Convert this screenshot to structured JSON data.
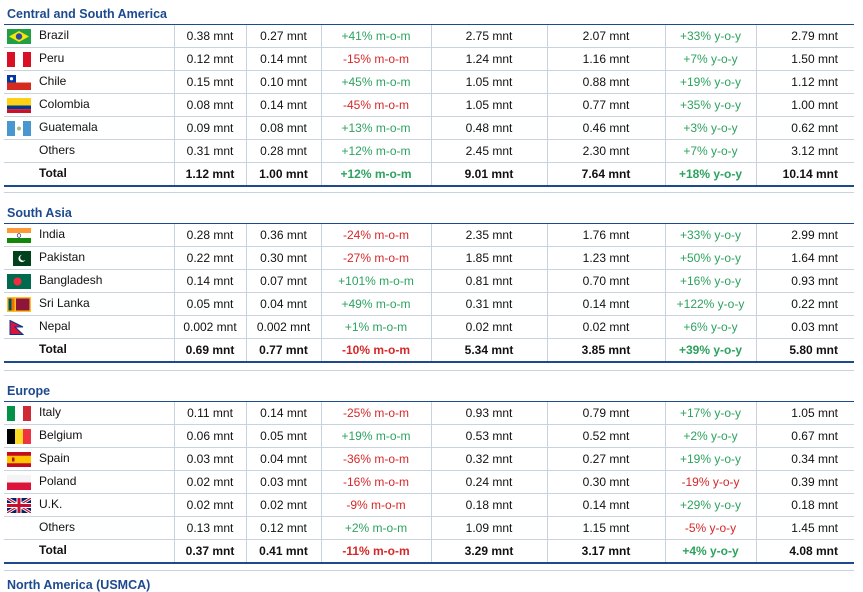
{
  "sections": [
    {
      "title": "Central and South America",
      "rows": [
        {
          "country": "Brazil",
          "flag": "brazil-flag",
          "c1": "0.38 mnt",
          "c2": "0.27 mnt",
          "mom": "+41% m-o-m",
          "c4": "2.75 mnt",
          "c5": "2.07 mnt",
          "yoy": "+33% y-o-y",
          "c7": "2.79 mnt"
        },
        {
          "country": "Peru",
          "flag": "peru-flag",
          "c1": "0.12 mnt",
          "c2": "0.14 mnt",
          "mom": "-15% m-o-m",
          "c4": "1.24 mnt",
          "c5": "1.16 mnt",
          "yoy": "+7% y-o-y",
          "c7": "1.50 mnt"
        },
        {
          "country": "Chile",
          "flag": "chile-flag",
          "c1": "0.15 mnt",
          "c2": "0.10 mnt",
          "mom": "+45% m-o-m",
          "c4": "1.05 mnt",
          "c5": "0.88 mnt",
          "yoy": "+19% y-o-y",
          "c7": "1.12 mnt"
        },
        {
          "country": "Colombia",
          "flag": "colombia-flag",
          "c1": "0.08 mnt",
          "c2": "0.14 mnt",
          "mom": "-45% m-o-m",
          "c4": "1.05 mnt",
          "c5": "0.77 mnt",
          "yoy": "+35% y-o-y",
          "c7": "1.00 mnt"
        },
        {
          "country": "Guatemala",
          "flag": "guatemala-flag",
          "c1": "0.09 mnt",
          "c2": "0.08 mnt",
          "mom": "+13% m-o-m",
          "c4": "0.48 mnt",
          "c5": "0.46 mnt",
          "yoy": "+3% y-o-y",
          "c7": "0.62 mnt"
        },
        {
          "country": "Others",
          "flag": "",
          "c1": "0.31 mnt",
          "c2": "0.28 mnt",
          "mom": "+12% m-o-m",
          "c4": "2.45 mnt",
          "c5": "2.30 mnt",
          "yoy": "+7% y-o-y",
          "c7": "3.12 mnt"
        }
      ],
      "total": {
        "label": "Total",
        "c1": "1.12 mnt",
        "c2": "1.00 mnt",
        "mom": "+12% m-o-m",
        "c4": "9.01 mnt",
        "c5": "7.64 mnt",
        "yoy": "+18% y-o-y",
        "c7": "10.14 mnt"
      }
    },
    {
      "title": "South Asia",
      "rows": [
        {
          "country": "India",
          "flag": "india-flag",
          "c1": "0.28 mnt",
          "c2": "0.36 mnt",
          "mom": "-24% m-o-m",
          "c4": "2.35 mnt",
          "c5": "1.76 mnt",
          "yoy": "+33% y-o-y",
          "c7": "2.99 mnt"
        },
        {
          "country": "Pakistan",
          "flag": "pakistan-flag",
          "c1": "0.22 mnt",
          "c2": "0.30 mnt",
          "mom": "-27% m-o-m",
          "c4": "1.85 mnt",
          "c5": "1.23 mnt",
          "yoy": "+50% y-o-y",
          "c7": "1.64 mnt"
        },
        {
          "country": "Bangladesh",
          "flag": "bangladesh-flag",
          "c1": "0.14 mnt",
          "c2": "0.07 mnt",
          "mom": "+101% m-o-m",
          "c4": "0.81 mnt",
          "c5": "0.70 mnt",
          "yoy": "+16% y-o-y",
          "c7": "0.93 mnt"
        },
        {
          "country": "Sri Lanka",
          "flag": "sri-lanka-flag",
          "c1": "0.05 mnt",
          "c2": "0.04 mnt",
          "mom": "+49% m-o-m",
          "c4": "0.31 mnt",
          "c5": "0.14 mnt",
          "yoy": "+122% y-o-y",
          "c7": "0.22 mnt"
        },
        {
          "country": "Nepal",
          "flag": "nepal-flag",
          "c1": "0.002 mnt",
          "c2": "0.002 mnt",
          "mom": "+1% m-o-m",
          "c4": "0.02 mnt",
          "c5": "0.02 mnt",
          "yoy": "+6% y-o-y",
          "c7": "0.03 mnt"
        }
      ],
      "total": {
        "label": "Total",
        "c1": "0.69 mnt",
        "c2": "0.77 mnt",
        "mom": "-10% m-o-m",
        "c4": "5.34 mnt",
        "c5": "3.85 mnt",
        "yoy": "+39% y-o-y",
        "c7": "5.80 mnt"
      }
    },
    {
      "title": "Europe",
      "rows": [
        {
          "country": "Italy",
          "flag": "italy-flag",
          "c1": "0.11 mnt",
          "c2": "0.14 mnt",
          "mom": "-25% m-o-m",
          "c4": "0.93 mnt",
          "c5": "0.79 mnt",
          "yoy": "+17% y-o-y",
          "c7": "1.05 mnt"
        },
        {
          "country": "Belgium",
          "flag": "belgium-flag",
          "c1": "0.06 mnt",
          "c2": "0.05 mnt",
          "mom": "+19% m-o-m",
          "c4": "0.53 mnt",
          "c5": "0.52 mnt",
          "yoy": "+2% y-o-y",
          "c7": "0.67 mnt"
        },
        {
          "country": "Spain",
          "flag": "spain-flag",
          "c1": "0.03 mnt",
          "c2": "0.04 mnt",
          "mom": "-36% m-o-m",
          "c4": "0.32 mnt",
          "c5": "0.27 mnt",
          "yoy": "+19% y-o-y",
          "c7": "0.34 mnt"
        },
        {
          "country": "Poland",
          "flag": "poland-flag",
          "c1": "0.02 mnt",
          "c2": "0.03 mnt",
          "mom": "-16% m-o-m",
          "c4": "0.24 mnt",
          "c5": "0.30 mnt",
          "yoy": "-19% y-o-y",
          "c7": "0.39 mnt"
        },
        {
          "country": "U.K.",
          "flag": "uk-flag",
          "c1": "0.02 mnt",
          "c2": "0.02 mnt",
          "mom": "-9% m-o-m",
          "c4": "0.18 mnt",
          "c5": "0.14 mnt",
          "yoy": "+29% y-o-y",
          "c7": "0.18 mnt"
        },
        {
          "country": "Others",
          "flag": "",
          "c1": "0.13 mnt",
          "c2": "0.12 mnt",
          "mom": "+2% m-o-m",
          "c4": "1.09 mnt",
          "c5": "1.15 mnt",
          "yoy": "-5% y-o-y",
          "c7": "1.45 mnt"
        }
      ],
      "total": {
        "label": "Total",
        "c1": "0.37 mnt",
        "c2": "0.41 mnt",
        "mom": "-11% m-o-m",
        "c4": "3.29 mnt",
        "c5": "3.17 mnt",
        "yoy": "+4% y-o-y",
        "c7": "4.08 mnt"
      }
    }
  ],
  "next_section_title": "North America (USMCA)",
  "colors": {
    "positive": "#2ca25f",
    "negative": "#d62728",
    "heading": "#1d4a8e",
    "rule": "#c9d3e0"
  }
}
